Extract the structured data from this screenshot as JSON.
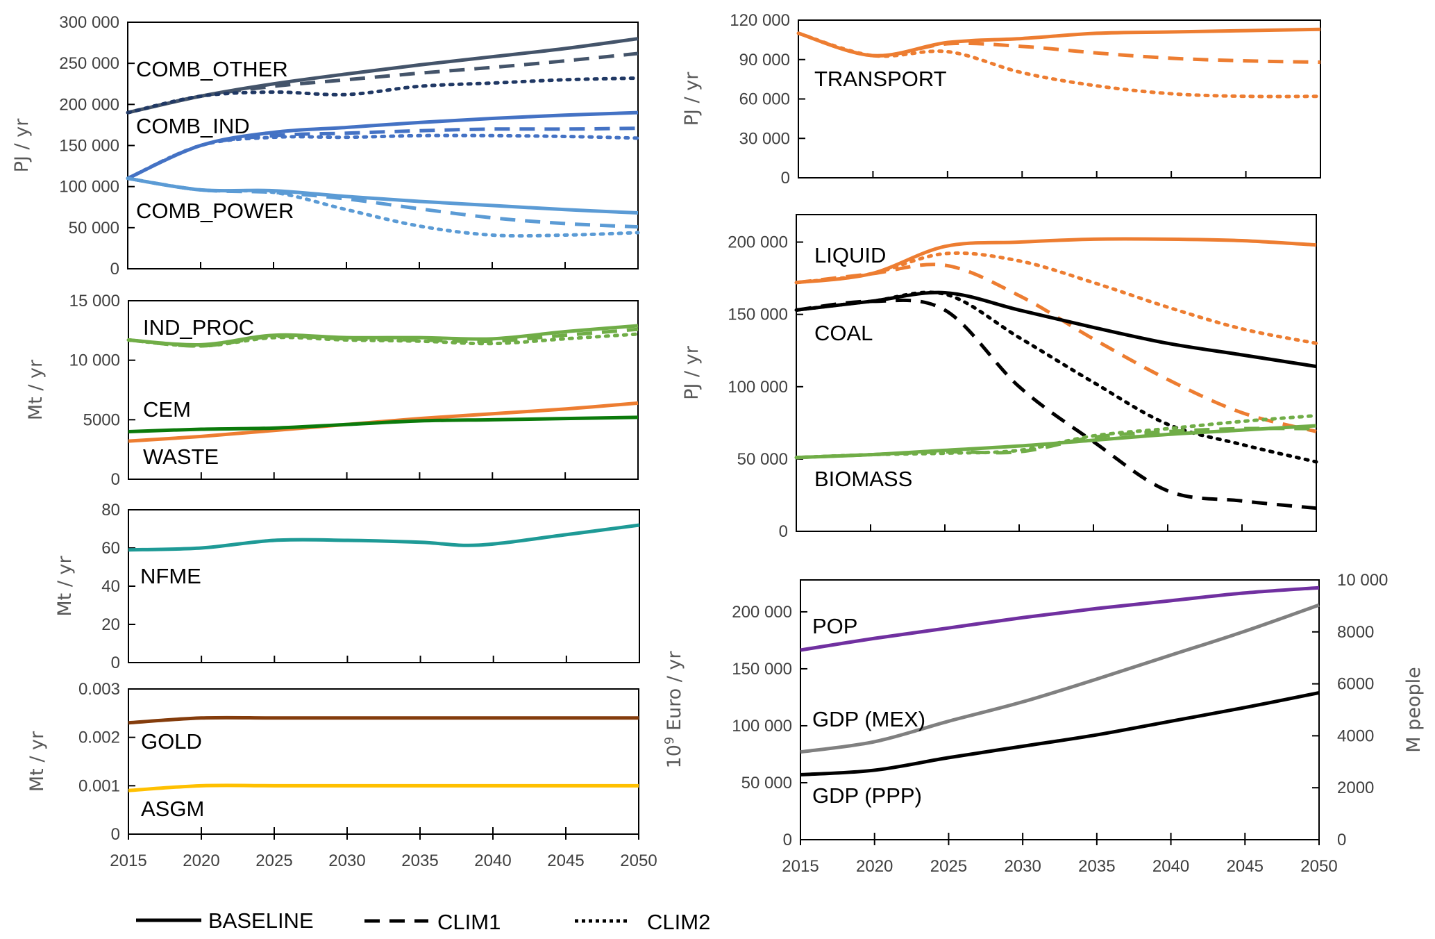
{
  "legend": {
    "entries": [
      {
        "name": "BASELINE",
        "style": "solid"
      },
      {
        "name": "CLIM1",
        "style": "dashed"
      },
      {
        "name": "CLIM2",
        "style": "dotted"
      }
    ]
  },
  "chart_data": [
    {
      "id": "combustion",
      "type": "line",
      "ylabel": "PJ / yr",
      "ylim": [
        0,
        300000
      ],
      "yticks": [
        0,
        50000,
        100000,
        150000,
        200000,
        250000,
        300000
      ],
      "ytick_labels": [
        "0",
        "50 000",
        "100 000",
        "150 000",
        "200 000",
        "250 000",
        "300 000"
      ],
      "x": [
        2015,
        2020,
        2025,
        2030,
        2035,
        2040,
        2045,
        2050
      ],
      "show_xtick_labels": false,
      "series": [
        {
          "name": "COMB_OTHER",
          "scenario": "BASELINE",
          "color": "#44546A",
          "values": [
            190000,
            210000,
            225000,
            237000,
            248000,
            258000,
            268000,
            280000
          ]
        },
        {
          "name": "COMB_OTHER",
          "scenario": "CLIM1",
          "color": "#44546A",
          "values": [
            190000,
            210000,
            222000,
            230000,
            238000,
            245000,
            253000,
            262000
          ]
        },
        {
          "name": "COMB_OTHER",
          "scenario": "CLIM2",
          "color": "#203864",
          "values": [
            190000,
            210000,
            215000,
            212000,
            222000,
            226000,
            230000,
            232000
          ]
        },
        {
          "name": "COMB_IND",
          "scenario": "BASELINE",
          "color": "#4472C4",
          "values": [
            110000,
            150000,
            166000,
            172000,
            178000,
            183000,
            187000,
            190000
          ]
        },
        {
          "name": "COMB_IND",
          "scenario": "CLIM1",
          "color": "#4472C4",
          "values": [
            110000,
            150000,
            162000,
            165000,
            168000,
            170000,
            170000,
            171000
          ]
        },
        {
          "name": "COMB_IND",
          "scenario": "CLIM2",
          "color": "#4472C4",
          "values": [
            110000,
            150000,
            160000,
            160000,
            162000,
            162000,
            161000,
            159000
          ]
        },
        {
          "name": "COMB_POWER",
          "scenario": "BASELINE",
          "color": "#5B9BD5",
          "values": [
            110000,
            96000,
            95000,
            88000,
            82000,
            77000,
            72000,
            68000
          ]
        },
        {
          "name": "COMB_POWER",
          "scenario": "CLIM1",
          "color": "#5B9BD5",
          "values": [
            110000,
            96000,
            93000,
            85000,
            73000,
            62000,
            55000,
            51000
          ]
        },
        {
          "name": "COMB_POWER",
          "scenario": "CLIM2",
          "color": "#5B9BD5",
          "values": [
            110000,
            96000,
            93000,
            72000,
            52000,
            41000,
            41000,
            44000
          ]
        }
      ],
      "annotations": [
        {
          "text": "COMB_OTHER",
          "near": "COMB_OTHER"
        },
        {
          "text": "COMB_IND",
          "near": "COMB_IND"
        },
        {
          "text": "COMB_POWER",
          "near": "COMB_POWER"
        }
      ]
    },
    {
      "id": "industry",
      "type": "line",
      "ylabel": "Mt / yr",
      "ylim": [
        0,
        15000
      ],
      "yticks": [
        0,
        5000,
        10000,
        15000
      ],
      "ytick_labels": [
        "0",
        "5000",
        "10 000",
        "15 000"
      ],
      "x": [
        2015,
        2020,
        2025,
        2030,
        2035,
        2040,
        2045,
        2050
      ],
      "show_xtick_labels": false,
      "series": [
        {
          "name": "IND_PROC",
          "scenario": "BASELINE",
          "color": "#70AD47",
          "values": [
            11700,
            11300,
            12100,
            11900,
            11900,
            11800,
            12400,
            12900
          ]
        },
        {
          "name": "IND_PROC",
          "scenario": "CLIM1",
          "color": "#70AD47",
          "values": [
            11700,
            11200,
            12000,
            11800,
            11700,
            11600,
            12100,
            12600
          ]
        },
        {
          "name": "IND_PROC",
          "scenario": "CLIM2",
          "color": "#70AD47",
          "values": [
            11700,
            11200,
            11900,
            11700,
            11600,
            11400,
            11800,
            12200
          ]
        },
        {
          "name": "CEM",
          "scenario": "BASELINE",
          "color": "#ED7D31",
          "values": [
            3200,
            3600,
            4100,
            4600,
            5100,
            5500,
            5900,
            6400
          ]
        },
        {
          "name": "WASTE",
          "scenario": "BASELINE",
          "color": "#0B7A0B",
          "values": [
            4000,
            4200,
            4300,
            4600,
            4900,
            5000,
            5100,
            5200
          ]
        }
      ],
      "annotations": [
        {
          "text": "IND_PROC",
          "near": "IND_PROC"
        },
        {
          "text": "CEM",
          "near": "CEM"
        },
        {
          "text": "WASTE",
          "near": "WASTE"
        }
      ]
    },
    {
      "id": "nfme",
      "type": "line",
      "ylabel": "Mt / yr",
      "ylim": [
        0,
        80
      ],
      "yticks": [
        0,
        20,
        40,
        60,
        80
      ],
      "ytick_labels": [
        "0",
        "20",
        "40",
        "60",
        "80"
      ],
      "x": [
        2015,
        2020,
        2025,
        2030,
        2035,
        2039,
        2045,
        2050
      ],
      "show_xtick_labels": false,
      "series": [
        {
          "name": "NFME",
          "scenario": "BASELINE",
          "color": "#1E9A96",
          "values": [
            59,
            60,
            64,
            64,
            63,
            61.5,
            67,
            72
          ]
        }
      ],
      "annotations": [
        {
          "text": "NFME",
          "near": "NFME"
        }
      ]
    },
    {
      "id": "gold",
      "type": "line",
      "ylabel": "Mt / yr",
      "ylim": [
        0,
        0.003
      ],
      "yticks": [
        0,
        0.001,
        0.002,
        0.003
      ],
      "ytick_labels": [
        "0",
        "0.001",
        "0.002",
        "0.003"
      ],
      "x": [
        2015,
        2020,
        2025,
        2030,
        2035,
        2040,
        2045,
        2050
      ],
      "xtick_labels": [
        "2015",
        "2020",
        "2025",
        "2030",
        "2035",
        "2040",
        "2045",
        "2050"
      ],
      "show_xtick_labels": true,
      "series": [
        {
          "name": "GOLD",
          "scenario": "BASELINE",
          "color": "#843C0C",
          "values": [
            0.0023,
            0.0024,
            0.0024,
            0.0024,
            0.0024,
            0.0024,
            0.0024,
            0.0024
          ]
        },
        {
          "name": "ASGM",
          "scenario": "BASELINE",
          "color": "#FFC000",
          "values": [
            0.0009,
            0.001,
            0.001,
            0.001,
            0.001,
            0.001,
            0.001,
            0.001
          ]
        }
      ],
      "annotations": [
        {
          "text": "GOLD",
          "near": "GOLD"
        },
        {
          "text": "ASGM",
          "near": "ASGM"
        }
      ]
    },
    {
      "id": "transport",
      "type": "line",
      "ylabel": "PJ / yr",
      "ylim": [
        0,
        120000
      ],
      "yticks": [
        0,
        30000,
        60000,
        90000,
        120000
      ],
      "ytick_labels": [
        "0",
        "30 000",
        "60 000",
        "90 000",
        "120 000"
      ],
      "x": [
        2015,
        2020,
        2025,
        2030,
        2035,
        2040,
        2045,
        2050
      ],
      "show_xtick_labels": false,
      "series": [
        {
          "name": "TRANSPORT",
          "scenario": "BASELINE",
          "color": "#ED7D31",
          "values": [
            110000,
            93000,
            103000,
            106000,
            110000,
            111000,
            112000,
            113000
          ]
        },
        {
          "name": "TRANSPORT",
          "scenario": "CLIM1",
          "color": "#ED7D31",
          "values": [
            110000,
            93000,
            102000,
            100000,
            95000,
            91000,
            89000,
            88000
          ]
        },
        {
          "name": "TRANSPORT",
          "scenario": "CLIM2",
          "color": "#ED7D31",
          "values": [
            110000,
            93000,
            96000,
            80000,
            70000,
            64000,
            62000,
            62000
          ]
        }
      ],
      "annotations": [
        {
          "text": "TRANSPORT",
          "near": "TRANSPORT"
        }
      ]
    },
    {
      "id": "fuels",
      "type": "line",
      "ylabel": "PJ / yr",
      "ylim": [
        0,
        219000
      ],
      "yticks": [
        0,
        50000,
        100000,
        150000,
        200000
      ],
      "ytick_labels": [
        "0",
        "50 000",
        "100 000",
        "150 000",
        "200 000"
      ],
      "x": [
        2015,
        2020,
        2025,
        2030,
        2035,
        2040,
        2045,
        2050
      ],
      "show_xtick_labels": false,
      "series": [
        {
          "name": "LIQUID",
          "scenario": "BASELINE",
          "color": "#ED7D31",
          "values": [
            172000,
            178000,
            197000,
            200000,
            202000,
            202000,
            201000,
            198000
          ]
        },
        {
          "name": "LIQUID",
          "scenario": "CLIM1",
          "color": "#ED7D31",
          "values": [
            172000,
            178000,
            184000,
            163000,
            133000,
            105000,
            82000,
            69000
          ]
        },
        {
          "name": "LIQUID",
          "scenario": "CLIM2",
          "color": "#ED7D31",
          "values": [
            172000,
            178000,
            192000,
            187000,
            172000,
            155000,
            140000,
            130000
          ]
        },
        {
          "name": "COAL",
          "scenario": "BASELINE",
          "color": "#000000",
          "values": [
            153000,
            159000,
            165000,
            153000,
            141000,
            130000,
            122000,
            114000
          ]
        },
        {
          "name": "COAL",
          "scenario": "CLIM1",
          "color": "#000000",
          "values": [
            153000,
            159000,
            153000,
            100000,
            62000,
            28000,
            21000,
            16000
          ]
        },
        {
          "name": "COAL",
          "scenario": "CLIM2",
          "color": "#000000",
          "values": [
            153000,
            159000,
            164000,
            134000,
            103000,
            74000,
            60000,
            48000
          ]
        },
        {
          "name": "BIOMASS",
          "scenario": "BASELINE",
          "color": "#70AD47",
          "values": [
            51000,
            53000,
            56000,
            59000,
            63000,
            67000,
            70000,
            73000
          ]
        },
        {
          "name": "BIOMASS",
          "scenario": "CLIM1",
          "color": "#70AD47",
          "values": [
            51000,
            53000,
            55000,
            55000,
            65000,
            69000,
            71000,
            71000
          ]
        },
        {
          "name": "BIOMASS",
          "scenario": "CLIM2",
          "color": "#70AD47",
          "values": [
            51000,
            53000,
            54000,
            56000,
            66000,
            71000,
            76000,
            80000
          ]
        }
      ],
      "annotations": [
        {
          "text": "LIQUID",
          "near": "LIQUID"
        },
        {
          "text": "COAL",
          "near": "COAL"
        },
        {
          "text": "BIOMASS",
          "near": "BIOMASS"
        }
      ]
    },
    {
      "id": "drivers",
      "type": "line",
      "ylabel": "10⁹ Euro / yr",
      "ylabel_base": "10",
      "ylabel_sup": "9",
      "ylabel_rest": " Euro / yr",
      "y2label": "M people",
      "ylim": [
        0,
        228000
      ],
      "yticks": [
        0,
        50000,
        100000,
        150000,
        200000
      ],
      "ytick_labels": [
        "0",
        "50 000",
        "100 000",
        "150 000",
        "200 000"
      ],
      "y2lim": [
        0,
        10000
      ],
      "y2ticks": [
        0,
        2000,
        4000,
        6000,
        8000,
        10000
      ],
      "y2tick_labels": [
        "0",
        "2000",
        "4000",
        "6000",
        "8000",
        "10 000"
      ],
      "x": [
        2015,
        2020,
        2025,
        2030,
        2035,
        2040,
        2045,
        2050
      ],
      "xtick_labels": [
        "2015",
        "2020",
        "2025",
        "2030",
        "2035",
        "2040",
        "2045",
        "2050"
      ],
      "show_xtick_labels": true,
      "series": [
        {
          "name": "POP",
          "scenario": "BASELINE",
          "axis": "right",
          "color": "#7030A0",
          "values": [
            7300,
            7750,
            8150,
            8550,
            8900,
            9200,
            9500,
            9700
          ]
        },
        {
          "name": "GDP (MEX)",
          "scenario": "BASELINE",
          "axis": "left",
          "color": "#808080",
          "values": [
            77000,
            86000,
            104000,
            121000,
            141000,
            162000,
            183000,
            206000
          ]
        },
        {
          "name": "GDP (PPP)",
          "scenario": "BASELINE",
          "axis": "left",
          "color": "#000000",
          "values": [
            57000,
            61000,
            72000,
            82000,
            92000,
            104000,
            116000,
            129000
          ]
        }
      ],
      "annotations": [
        {
          "text": "POP",
          "near": "POP"
        },
        {
          "text": "GDP (MEX)",
          "near": "GDP (MEX)"
        },
        {
          "text": "GDP (PPP)",
          "near": "GDP (PPP)"
        }
      ]
    }
  ]
}
